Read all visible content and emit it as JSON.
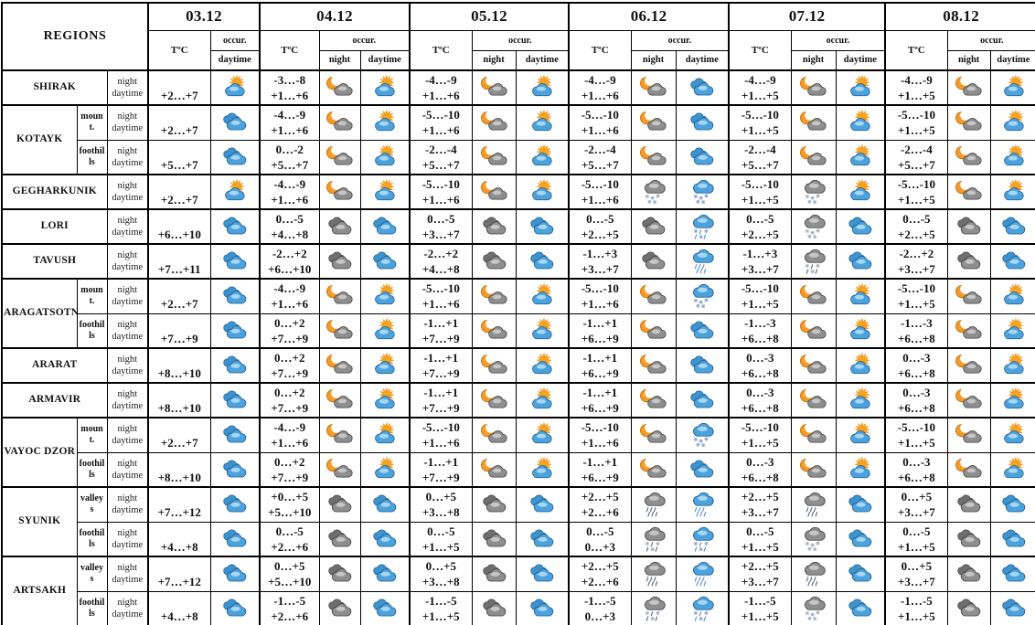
{
  "header": {
    "regions_label": "REGIONS",
    "temp_label": "TºC",
    "occur_label": "occur.",
    "night_label": "night",
    "daytime_label": "daytime",
    "dates": [
      "03.12",
      "04.12",
      "05.12",
      "06.12",
      "07.12",
      "08.12"
    ]
  },
  "body_labels": {
    "night": "night",
    "daytime": "daytime"
  },
  "icons_legend": {
    "sun-cloud": "sun behind cloud (partly sunny)",
    "cloud": "blue clouds (cloudy)",
    "dark-cloud": "dark gray clouds (overcast)",
    "moon-cloud": "crescent moon with cloud (partly cloudy night)",
    "snow": "blue cloud with snowfall",
    "dark-snow": "dark cloud with snowfall",
    "rain": "blue cloud with rain",
    "dark-rain": "dark cloud with rain",
    "sleet": "blue cloud with rain and snow",
    "dark-sleet": "dark cloud with rain and snow"
  },
  "colors": {
    "cloud_blue": "#4CA2DD",
    "cloud_blue_outline": "#1A5B8C",
    "cloud_blue_highlight": "#A8D6F2",
    "cloud_blue_back": "#3E92CE",
    "cloud_gray": "#8E8E8E",
    "cloud_gray_outline": "#3E3E3E",
    "cloud_gray_highlight": "#C6C6C6",
    "cloud_gray_back": "#6F6F6F",
    "sun_ray": "#FFC125",
    "sun_core": "#F9A21E",
    "sun_outline": "#EF8A0E",
    "moon": "#F59B28",
    "moon_outline": "#C97613",
    "snow_flake": "#94A9CE",
    "rain_drop": "#5E8FD0",
    "dark_precip": "#5A6B80",
    "dark_flake": "#A9B2C0",
    "border": "#000000",
    "background": "#FFFFFF"
  },
  "groups": [
    {
      "region": "SHIRAK",
      "rows": [
        {
          "subarea": null,
          "cells": [
            {
              "temp_day": "+2…+7",
              "icon_day": "sun-cloud"
            },
            {
              "temp_night": "-3…-8",
              "temp_day": "+1…+6",
              "icon_night": "moon-cloud",
              "icon_day": "sun-cloud"
            },
            {
              "temp_night": "-4…-9",
              "temp_day": "+1…+6",
              "icon_night": "moon-cloud",
              "icon_day": "sun-cloud"
            },
            {
              "temp_night": "-4…-9",
              "temp_day": "+1…+6",
              "icon_night": "moon-cloud",
              "icon_day": "cloud"
            },
            {
              "temp_night": "-4…-9",
              "temp_day": "+1…+5",
              "icon_night": "moon-cloud",
              "icon_day": "sun-cloud"
            },
            {
              "temp_night": "-4…-9",
              "temp_day": "+1…+5",
              "icon_night": "moon-cloud",
              "icon_day": "sun-cloud"
            }
          ]
        }
      ]
    },
    {
      "region": "KOTAYK",
      "rows": [
        {
          "subarea": "mount.",
          "cells": [
            {
              "temp_day": "+2…+7",
              "icon_day": "cloud"
            },
            {
              "temp_night": "-4…-9",
              "temp_day": "+1…+6",
              "icon_night": "moon-cloud",
              "icon_day": "sun-cloud"
            },
            {
              "temp_night": "-5…-10",
              "temp_day": "+1…+6",
              "icon_night": "moon-cloud",
              "icon_day": "sun-cloud"
            },
            {
              "temp_night": "-5…-10",
              "temp_day": "+1…+6",
              "icon_night": "moon-cloud",
              "icon_day": "cloud"
            },
            {
              "temp_night": "-5…-10",
              "temp_day": "+1…+5",
              "icon_night": "moon-cloud",
              "icon_day": "sun-cloud"
            },
            {
              "temp_night": "-5…-10",
              "temp_day": "+1…+5",
              "icon_night": "moon-cloud",
              "icon_day": "sun-cloud"
            }
          ]
        },
        {
          "subarea": "foothills",
          "cells": [
            {
              "temp_day": "+5…+7",
              "icon_day": "cloud"
            },
            {
              "temp_night": "0…-2",
              "temp_day": "+5…+7",
              "icon_night": "moon-cloud",
              "icon_day": "sun-cloud"
            },
            {
              "temp_night": "-2…-4",
              "temp_day": "+5…+7",
              "icon_night": "moon-cloud",
              "icon_day": "sun-cloud"
            },
            {
              "temp_night": "-2…-4",
              "temp_day": "+5…+7",
              "icon_night": "moon-cloud",
              "icon_day": "cloud"
            },
            {
              "temp_night": "-2…-4",
              "temp_day": "+5…+7",
              "icon_night": "moon-cloud",
              "icon_day": "sun-cloud"
            },
            {
              "temp_night": "-2…-4",
              "temp_day": "+5…+7",
              "icon_night": "moon-cloud",
              "icon_day": "sun-cloud"
            }
          ]
        }
      ]
    },
    {
      "region": "GEGHARKUNIK",
      "rows": [
        {
          "subarea": null,
          "cells": [
            {
              "temp_day": "+2…+7",
              "icon_day": "sun-cloud"
            },
            {
              "temp_night": "-4…-9",
              "temp_day": "+1…+6",
              "icon_night": "moon-cloud",
              "icon_day": "sun-cloud"
            },
            {
              "temp_night": "-5…-10",
              "temp_day": "+1…+6",
              "icon_night": "moon-cloud",
              "icon_day": "sun-cloud"
            },
            {
              "temp_night": "-5…-10",
              "temp_day": "+1…+6",
              "icon_night": "dark-snow",
              "icon_day": "snow"
            },
            {
              "temp_night": "-5…-10",
              "temp_day": "+1…+5",
              "icon_night": "dark-snow",
              "icon_day": "sun-cloud"
            },
            {
              "temp_night": "-5…-10",
              "temp_day": "+1…+5",
              "icon_night": "moon-cloud",
              "icon_day": "sun-cloud"
            }
          ]
        }
      ]
    },
    {
      "region": "LORI",
      "rows": [
        {
          "subarea": null,
          "cells": [
            {
              "temp_day": "+6…+10",
              "icon_day": "cloud"
            },
            {
              "temp_night": "0…-5",
              "temp_day": "+4…+8",
              "icon_night": "dark-cloud",
              "icon_day": "cloud"
            },
            {
              "temp_night": "0…-5",
              "temp_day": "+3…+7",
              "icon_night": "dark-cloud",
              "icon_day": "cloud"
            },
            {
              "temp_night": "0…-5",
              "temp_day": "+2…+5",
              "icon_night": "dark-cloud",
              "icon_day": "sleet"
            },
            {
              "temp_night": "0…-5",
              "temp_day": "+2…+5",
              "icon_night": "dark-snow",
              "icon_day": "cloud"
            },
            {
              "temp_night": "0…-5",
              "temp_day": "+2…+5",
              "icon_night": "dark-cloud",
              "icon_day": "cloud"
            }
          ]
        }
      ]
    },
    {
      "region": "TAVUSH",
      "rows": [
        {
          "subarea": null,
          "cells": [
            {
              "temp_day": "+7…+11",
              "icon_day": "cloud"
            },
            {
              "temp_night": "-2…+2",
              "temp_day": "+6…+10",
              "icon_night": "dark-cloud",
              "icon_day": "cloud"
            },
            {
              "temp_night": "-2…+2",
              "temp_day": "+4…+8",
              "icon_night": "dark-cloud",
              "icon_day": "cloud"
            },
            {
              "temp_night": "-1…+3",
              "temp_day": "+3…+7",
              "icon_night": "dark-cloud",
              "icon_day": "rain"
            },
            {
              "temp_night": "-1…+3",
              "temp_day": "+3…+7",
              "icon_night": "dark-sleet",
              "icon_day": "cloud"
            },
            {
              "temp_night": "-2…+2",
              "temp_day": "+3…+7",
              "icon_night": "dark-cloud",
              "icon_day": "cloud"
            }
          ]
        }
      ]
    },
    {
      "region": "ARAGATSOTN",
      "rows": [
        {
          "subarea": "mount.",
          "cells": [
            {
              "temp_day": "+2…+7",
              "icon_day": "cloud"
            },
            {
              "temp_night": "-4…-9",
              "temp_day": "+1…+6",
              "icon_night": "moon-cloud",
              "icon_day": "sun-cloud"
            },
            {
              "temp_night": "-5…-10",
              "temp_day": "+1…+6",
              "icon_night": "moon-cloud",
              "icon_day": "sun-cloud"
            },
            {
              "temp_night": "-5…-10",
              "temp_day": "+1…+6",
              "icon_night": "moon-cloud",
              "icon_day": "snow"
            },
            {
              "temp_night": "-5…-10",
              "temp_day": "+1…+5",
              "icon_night": "moon-cloud",
              "icon_day": "sun-cloud"
            },
            {
              "temp_night": "-5…-10",
              "temp_day": "+1…+5",
              "icon_night": "moon-cloud",
              "icon_day": "sun-cloud"
            }
          ]
        },
        {
          "subarea": "foothills",
          "cells": [
            {
              "temp_day": "+7…+9",
              "icon_day": "cloud"
            },
            {
              "temp_night": "0…+2",
              "temp_day": "+7…+9",
              "icon_night": "moon-cloud",
              "icon_day": "sun-cloud"
            },
            {
              "temp_night": "-1…+1",
              "temp_day": "+7…+9",
              "icon_night": "moon-cloud",
              "icon_day": "sun-cloud"
            },
            {
              "temp_night": "-1…+1",
              "temp_day": "+6…+9",
              "icon_night": "moon-cloud",
              "icon_day": "cloud"
            },
            {
              "temp_night": "-1…-3",
              "temp_day": "+6…+8",
              "icon_night": "moon-cloud",
              "icon_day": "sun-cloud"
            },
            {
              "temp_night": "-1…-3",
              "temp_day": "+6…+8",
              "icon_night": "moon-cloud",
              "icon_day": "sun-cloud"
            }
          ]
        }
      ]
    },
    {
      "region": "ARARAT",
      "rows": [
        {
          "subarea": null,
          "cells": [
            {
              "temp_day": "+8…+10",
              "icon_day": "cloud"
            },
            {
              "temp_night": "0…+2",
              "temp_day": "+7…+9",
              "icon_night": "moon-cloud",
              "icon_day": "sun-cloud"
            },
            {
              "temp_night": "-1…+1",
              "temp_day": "+7…+9",
              "icon_night": "moon-cloud",
              "icon_day": "sun-cloud"
            },
            {
              "temp_night": "-1…+1",
              "temp_day": "+6…+9",
              "icon_night": "moon-cloud",
              "icon_day": "cloud"
            },
            {
              "temp_night": "0…-3",
              "temp_day": "+6…+8",
              "icon_night": "moon-cloud",
              "icon_day": "sun-cloud"
            },
            {
              "temp_night": "0…-3",
              "temp_day": "+6…+8",
              "icon_night": "moon-cloud",
              "icon_day": "sun-cloud"
            }
          ]
        }
      ]
    },
    {
      "region": "ARMAVIR",
      "rows": [
        {
          "subarea": null,
          "cells": [
            {
              "temp_day": "+8…+10",
              "icon_day": "cloud"
            },
            {
              "temp_night": "0…+2",
              "temp_day": "+7…+9",
              "icon_night": "moon-cloud",
              "icon_day": "sun-cloud"
            },
            {
              "temp_night": "-1…+1",
              "temp_day": "+7…+9",
              "icon_night": "moon-cloud",
              "icon_day": "sun-cloud"
            },
            {
              "temp_night": "-1…+1",
              "temp_day": "+6…+9",
              "icon_night": "moon-cloud",
              "icon_day": "cloud"
            },
            {
              "temp_night": "0…-3",
              "temp_day": "+6…+8",
              "icon_night": "moon-cloud",
              "icon_day": "sun-cloud"
            },
            {
              "temp_night": "0…-3",
              "temp_day": "+6…+8",
              "icon_night": "moon-cloud",
              "icon_day": "sun-cloud"
            }
          ]
        }
      ]
    },
    {
      "region": "VAYOC DZOR",
      "rows": [
        {
          "subarea": "mount.",
          "cells": [
            {
              "temp_day": "+2…+7",
              "icon_day": "cloud"
            },
            {
              "temp_night": "-4…-9",
              "temp_day": "+1…+6",
              "icon_night": "moon-cloud",
              "icon_day": "sun-cloud"
            },
            {
              "temp_night": "-5…-10",
              "temp_day": "+1…+6",
              "icon_night": "moon-cloud",
              "icon_day": "sun-cloud"
            },
            {
              "temp_night": "-5…-10",
              "temp_day": "+1…+6",
              "icon_night": "moon-cloud",
              "icon_day": "snow"
            },
            {
              "temp_night": "-5…-10",
              "temp_day": "+1…+5",
              "icon_night": "moon-cloud",
              "icon_day": "sun-cloud"
            },
            {
              "temp_night": "-5…-10",
              "temp_day": "+1…+5",
              "icon_night": "moon-cloud",
              "icon_day": "sun-cloud"
            }
          ]
        },
        {
          "subarea": "foothills",
          "cells": [
            {
              "temp_day": "+8…+10",
              "icon_day": "cloud"
            },
            {
              "temp_night": "0…+2",
              "temp_day": "+7…+9",
              "icon_night": "moon-cloud",
              "icon_day": "sun-cloud"
            },
            {
              "temp_night": "-1…+1",
              "temp_day": "+7…+9",
              "icon_night": "moon-cloud",
              "icon_day": "sun-cloud"
            },
            {
              "temp_night": "-1…+1",
              "temp_day": "+6…+9",
              "icon_night": "moon-cloud",
              "icon_day": "cloud"
            },
            {
              "temp_night": "0…-3",
              "temp_day": "+6…+8",
              "icon_night": "moon-cloud",
              "icon_day": "sun-cloud"
            },
            {
              "temp_night": "0…-3",
              "temp_day": "+6…+8",
              "icon_night": "moon-cloud",
              "icon_day": "sun-cloud"
            }
          ]
        }
      ]
    },
    {
      "region": "SYUNIK",
      "rows": [
        {
          "subarea": "valleys",
          "cells": [
            {
              "temp_day": "+7…+12",
              "icon_day": "cloud"
            },
            {
              "temp_night": "+0…+5",
              "temp_day": "+5…+10",
              "icon_night": "dark-cloud",
              "icon_day": "cloud"
            },
            {
              "temp_night": "0…+5",
              "temp_day": "+3…+8",
              "icon_night": "dark-cloud",
              "icon_day": "cloud"
            },
            {
              "temp_night": "+2…+5",
              "temp_day": "+2…+6",
              "icon_night": "dark-rain",
              "icon_day": "rain"
            },
            {
              "temp_night": "+2…+5",
              "temp_day": "+3…+7",
              "icon_night": "dark-rain",
              "icon_day": "cloud"
            },
            {
              "temp_night": "0…+5",
              "temp_day": "+3…+7",
              "icon_night": "dark-cloud",
              "icon_day": "cloud"
            }
          ]
        },
        {
          "subarea": "foothills",
          "cells": [
            {
              "temp_day": "+4…+8",
              "icon_day": "cloud"
            },
            {
              "temp_night": "0…-5",
              "temp_day": "+2…+6",
              "icon_night": "dark-cloud",
              "icon_day": "cloud"
            },
            {
              "temp_night": "0…-5",
              "temp_day": "+1…+5",
              "icon_night": "dark-cloud",
              "icon_day": "cloud"
            },
            {
              "temp_night": "0…-5",
              "temp_day": "0…+3",
              "icon_night": "dark-sleet",
              "icon_day": "sleet"
            },
            {
              "temp_night": "0…-5",
              "temp_day": "+1…+5",
              "icon_night": "dark-snow",
              "icon_day": "cloud"
            },
            {
              "temp_night": "0…-5",
              "temp_day": "+1…+5",
              "icon_night": "dark-cloud",
              "icon_day": "cloud"
            }
          ]
        }
      ]
    },
    {
      "region": "ARTSAKH",
      "rows": [
        {
          "subarea": "valleys",
          "cells": [
            {
              "temp_day": "+7…+12",
              "icon_day": "cloud"
            },
            {
              "temp_night": "0…+5",
              "temp_day": "+5…+10",
              "icon_night": "dark-cloud",
              "icon_day": "cloud"
            },
            {
              "temp_night": "0…+5",
              "temp_day": "+3…+8",
              "icon_night": "dark-cloud",
              "icon_day": "cloud"
            },
            {
              "temp_night": "+2…+5",
              "temp_day": "+2…+6",
              "icon_night": "dark-rain",
              "icon_day": "rain"
            },
            {
              "temp_night": "+2…+5",
              "temp_day": "+3…+7",
              "icon_night": "dark-rain",
              "icon_day": "cloud"
            },
            {
              "temp_night": "0…+5",
              "temp_day": "+3…+7",
              "icon_night": "dark-cloud",
              "icon_day": "cloud"
            }
          ]
        },
        {
          "subarea": "foothills",
          "cells": [
            {
              "temp_day": "+4…+8",
              "icon_day": "cloud"
            },
            {
              "temp_night": "-1…-5",
              "temp_day": "+2…+6",
              "icon_night": "dark-cloud",
              "icon_day": "cloud"
            },
            {
              "temp_night": "-1…-5",
              "temp_day": "+1…+5",
              "icon_night": "dark-cloud",
              "icon_day": "cloud"
            },
            {
              "temp_night": "-1…-5",
              "temp_day": "0…+3",
              "icon_night": "dark-sleet",
              "icon_day": "sleet"
            },
            {
              "temp_night": "-1…-5",
              "temp_day": "+1…+5",
              "icon_night": "dark-snow",
              "icon_day": "cloud"
            },
            {
              "temp_night": "-1…-5",
              "temp_day": "+1…+5",
              "icon_night": "dark-cloud",
              "icon_day": "cloud"
            }
          ]
        }
      ]
    }
  ]
}
